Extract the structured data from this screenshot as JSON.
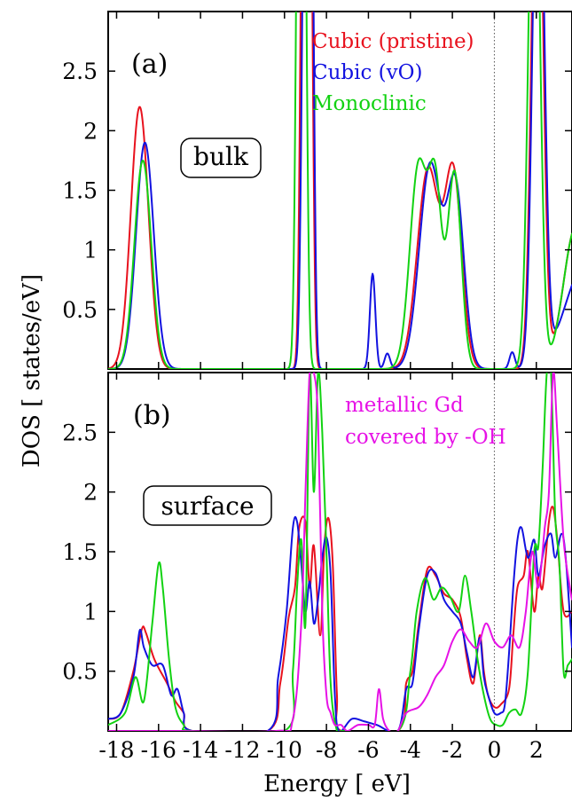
{
  "chart_data": [
    {
      "panel": "(a)",
      "box_label": "bulk",
      "type": "line",
      "xlim": [
        -18.4,
        3.7
      ],
      "ylim": [
        0,
        3.0
      ],
      "yticks": [
        "0.5",
        "1",
        "1.5",
        "2",
        "2.5"
      ],
      "ytick_values": [
        0.5,
        1,
        1.5,
        2,
        2.5
      ],
      "vertical_line": 0,
      "series": [
        {
          "name": "Cubic (pristine)",
          "color": "#e8121e",
          "peaks": [
            [
              -16.9,
              0.42,
              2.2
            ],
            [
              -9.1,
              0.13,
              5.0
            ],
            [
              -8.8,
              0.13,
              5.0
            ],
            [
              -3.15,
              0.52,
              1.68
            ],
            [
              -1.95,
              0.4,
              1.6
            ],
            [
              2.05,
              0.26,
              5.0
            ],
            [
              3.9,
              0.6,
              1.2
            ]
          ],
          "x": [
            -18.4,
            -17.4,
            -17.2,
            -16.9,
            -16.6,
            -16.3,
            -9.6,
            -9.1,
            -8.8,
            -8.3,
            -4.6,
            -4.0,
            -3.5,
            -3.2,
            -2.6,
            -2.3,
            -2.0,
            -1.7,
            -1.2,
            1.2,
            1.8,
            2.0,
            2.2,
            2.6,
            3.0,
            3.4,
            3.7
          ],
          "y": [
            0.0,
            0.0,
            0.6,
            2.2,
            0.7,
            0.0,
            0.0,
            3.0,
            3.0,
            0.0,
            0.0,
            0.4,
            1.35,
            1.72,
            1.25,
            1.3,
            1.65,
            1.2,
            0.0,
            0.0,
            1.5,
            3.0,
            3.0,
            1.0,
            0.47,
            0.62,
            0.95
          ]
        },
        {
          "name": "Cubic (vO)",
          "color": "#1212e0",
          "peaks": [
            [
              -16.65,
              0.42,
              1.9
            ],
            [
              -9.0,
              0.15,
              5.0
            ],
            [
              -8.75,
              0.13,
              5.0
            ],
            [
              -5.8,
              0.13,
              0.8
            ],
            [
              -5.1,
              0.13,
              0.13
            ],
            [
              -3.05,
              0.52,
              1.72
            ],
            [
              -1.85,
              0.4,
              1.5
            ],
            [
              0.85,
              0.13,
              0.14
            ],
            [
              2.1,
              0.26,
              5.0
            ],
            [
              4.4,
              1.0,
              0.9
            ]
          ],
          "x": [
            -18.4,
            -17.2,
            -16.9,
            -16.65,
            -16.3,
            -16.0,
            -9.6,
            -9.0,
            -8.75,
            -8.2,
            -6.1,
            -5.8,
            -5.5,
            -5.1,
            -4.6,
            -4.0,
            -3.4,
            -3.0,
            -2.4,
            -2.2,
            -1.9,
            -1.6,
            -1.1,
            0.3,
            0.85,
            1.3,
            2.0,
            2.3,
            2.6,
            3.0,
            3.4,
            3.7
          ],
          "y": [
            0.0,
            0.0,
            0.8,
            1.9,
            0.6,
            0.0,
            0.0,
            3.0,
            3.0,
            0.0,
            0.0,
            0.8,
            0.0,
            0.13,
            0.0,
            0.4,
            1.5,
            1.74,
            1.1,
            1.2,
            1.5,
            1.2,
            0.0,
            0.05,
            0.14,
            0.05,
            3.0,
            3.0,
            0.6,
            0.5,
            0.65,
            0.7
          ]
        },
        {
          "name": "Monoclinic",
          "color": "#12d212",
          "peaks": [
            [
              -16.75,
              0.4,
              1.75
            ],
            [
              -9.3,
              0.14,
              5.0
            ],
            [
              -9.1,
              0.14,
              5.0
            ],
            [
              -3.6,
              0.42,
              1.72
            ],
            [
              -2.8,
              0.3,
              1.4
            ],
            [
              -1.9,
              0.32,
              1.65
            ],
            [
              1.9,
              0.26,
              5.0
            ],
            [
              3.9,
              0.6,
              1.2
            ]
          ],
          "x": [
            -18.4,
            -17.3,
            -17.0,
            -16.75,
            -16.4,
            -16.1,
            -9.8,
            -9.3,
            -9.1,
            -8.6,
            -4.6,
            -4.0,
            -3.6,
            -3.2,
            -2.8,
            -2.4,
            -2.2,
            -1.9,
            -1.5,
            -1.1,
            1.0,
            1.6,
            1.9,
            2.2,
            2.6,
            3.0,
            3.3,
            3.7
          ],
          "y": [
            0.0,
            0.0,
            0.6,
            1.75,
            0.6,
            0.0,
            0.0,
            3.0,
            3.0,
            0.0,
            0.0,
            0.6,
            1.72,
            1.3,
            1.4,
            0.9,
            1.3,
            1.65,
            0.8,
            0.0,
            0.0,
            1.6,
            3.0,
            3.0,
            1.0,
            0.45,
            0.33,
            0.7
          ]
        }
      ]
    },
    {
      "panel": "(b)",
      "box_label": "surface",
      "type": "line",
      "xlim": [
        -18.4,
        3.7
      ],
      "ylim": [
        0,
        3.0
      ],
      "yticks": [
        "0.5",
        "1",
        "1.5",
        "2",
        "2.5"
      ],
      "ytick_values": [
        0.5,
        1,
        1.5,
        2,
        2.5
      ],
      "xlabel": "Energy [ eV]",
      "xticks": [
        "-18",
        "-16",
        "-14",
        "-12",
        "-10",
        "-8",
        "-6",
        "-4",
        "-2",
        "0",
        "2"
      ],
      "xtick_values": [
        -18,
        -16,
        -14,
        -12,
        -10,
        -8,
        -6,
        -4,
        -2,
        0,
        2
      ],
      "ylabel": "DOS [ states/eV]",
      "vertical_line": 0,
      "series": [
        {
          "name": "Cubic (pristine)",
          "color": "#e8121e",
          "x": [
            -18.4,
            -17.8,
            -17.2,
            -16.8,
            -16.6,
            -16.2,
            -15.6,
            -15.2,
            -14.8,
            -14.4,
            -10.8,
            -10.2,
            -9.8,
            -9.5,
            -9.3,
            -9.0,
            -8.8,
            -8.6,
            -8.3,
            -8.1,
            -7.9,
            -7.7,
            -7.5,
            -7.3,
            -4.6,
            -4.2,
            -3.9,
            -3.6,
            -3.2,
            -2.8,
            -2.4,
            -2.0,
            -1.6,
            -1.3,
            -1.0,
            -0.7,
            -0.5,
            -0.3,
            0.0,
            0.3,
            0.7,
            0.9,
            1.1,
            1.4,
            1.6,
            1.9,
            2.1,
            2.3,
            2.6,
            2.8,
            3.0,
            3.3,
            3.7
          ],
          "y": [
            0.1,
            0.15,
            0.5,
            0.85,
            0.82,
            0.6,
            0.4,
            0.25,
            0.15,
            0.0,
            0.0,
            0.4,
            0.95,
            1.2,
            1.7,
            1.75,
            1.2,
            1.55,
            0.8,
            1.55,
            1.78,
            1.4,
            0.3,
            0.0,
            0.0,
            0.4,
            0.5,
            0.9,
            1.35,
            1.3,
            1.15,
            1.1,
            0.95,
            0.6,
            0.4,
            0.8,
            0.5,
            0.3,
            0.2,
            0.22,
            0.35,
            0.8,
            1.2,
            1.3,
            1.5,
            1.0,
            1.3,
            1.2,
            1.75,
            1.87,
            1.6,
            1.0,
            1.0
          ]
        },
        {
          "name": "Cubic (vO)",
          "color": "#1212e0",
          "x": [
            -18.4,
            -17.8,
            -17.2,
            -16.9,
            -16.7,
            -16.3,
            -15.8,
            -15.4,
            -15.1,
            -14.8,
            -14.4,
            -10.8,
            -10.3,
            -9.9,
            -9.6,
            -9.4,
            -9.2,
            -9.0,
            -8.8,
            -8.6,
            -8.4,
            -8.2,
            -8.0,
            -7.8,
            -7.6,
            -7.4,
            -6.8,
            -6.2,
            -5.6,
            -4.6,
            -4.2,
            -3.9,
            -3.6,
            -3.2,
            -2.8,
            -2.4,
            -2.0,
            -1.6,
            -1.3,
            -1.0,
            -0.7,
            -0.5,
            -0.3,
            0.0,
            0.3,
            0.5,
            0.7,
            0.9,
            1.1,
            1.3,
            1.6,
            1.9,
            2.1,
            2.4,
            2.7,
            2.9,
            3.2,
            3.4,
            3.7
          ],
          "y": [
            0.1,
            0.15,
            0.45,
            0.84,
            0.7,
            0.55,
            0.55,
            0.3,
            0.35,
            0.15,
            0.0,
            0.0,
            0.45,
            1.0,
            1.7,
            1.75,
            1.4,
            1.0,
            1.25,
            0.9,
            1.1,
            1.45,
            1.62,
            1.3,
            0.3,
            0.0,
            0.1,
            0.08,
            0.05,
            0.0,
            0.35,
            0.4,
            0.85,
            1.3,
            1.32,
            1.1,
            1.0,
            0.9,
            0.65,
            0.45,
            0.78,
            0.45,
            0.3,
            0.15,
            0.15,
            0.22,
            0.65,
            1.2,
            1.6,
            1.7,
            1.45,
            1.6,
            1.3,
            1.55,
            1.65,
            1.45,
            1.65,
            1.45,
            0.7
          ]
        },
        {
          "name": "Monoclinic",
          "color": "#12d212",
          "x": [
            -18.4,
            -17.6,
            -17.1,
            -16.7,
            -16.3,
            -16.0,
            -15.8,
            -15.5,
            -15.2,
            -14.8,
            -14.4,
            -10.0,
            -9.6,
            -9.4,
            -9.2,
            -9.0,
            -8.8,
            -8.6,
            -8.4,
            -8.2,
            -8.0,
            -7.8,
            -7.5,
            -7.2,
            -4.6,
            -4.0,
            -3.7,
            -3.3,
            -2.9,
            -2.5,
            -2.1,
            -1.7,
            -1.4,
            -1.1,
            -0.8,
            -0.5,
            -0.2,
            0.1,
            0.4,
            0.7,
            1.0,
            1.3,
            1.6,
            1.9,
            2.1,
            2.3,
            2.5,
            2.7,
            2.9,
            3.1,
            3.3,
            3.5,
            3.7
          ],
          "y": [
            0.05,
            0.15,
            0.45,
            0.25,
            0.9,
            1.4,
            1.2,
            0.6,
            0.2,
            0.05,
            0.0,
            0.0,
            0.5,
            1.2,
            1.6,
            0.9,
            3.0,
            2.0,
            3.0,
            2.5,
            1.5,
            0.4,
            0.0,
            0.0,
            0.0,
            0.5,
            1.0,
            1.28,
            1.1,
            1.2,
            1.12,
            1.0,
            1.3,
            1.0,
            0.6,
            0.3,
            0.1,
            0.05,
            0.05,
            0.15,
            0.18,
            0.15,
            0.5,
            1.5,
            1.55,
            2.2,
            3.0,
            3.0,
            1.8,
            1.4,
            0.5,
            0.55,
            0.6
          ]
        },
        {
          "name": "metallic Gd covered by -OH",
          "color": "#e612e6",
          "x": [
            -18.4,
            -15.0,
            -10.4,
            -9.6,
            -9.2,
            -9.0,
            -8.8,
            -8.6,
            -8.4,
            -8.2,
            -8.0,
            -7.8,
            -7.6,
            -7.3,
            -7.0,
            -6.5,
            -6.0,
            -5.7,
            -5.5,
            -5.3,
            -5.0,
            -4.6,
            -4.2,
            -3.6,
            -3.2,
            -2.8,
            -2.4,
            -2.0,
            -1.6,
            -1.2,
            -0.8,
            -0.4,
            0.0,
            0.4,
            0.8,
            1.2,
            1.5,
            1.8,
            2.1,
            2.4,
            2.6,
            2.8,
            3.0,
            3.3,
            3.6,
            3.7
          ],
          "y": [
            0.0,
            0.0,
            0.0,
            0.1,
            0.9,
            2.0,
            3.0,
            3.0,
            2.6,
            1.0,
            0.3,
            0.15,
            0.05,
            0.05,
            0.0,
            0.05,
            0.05,
            0.05,
            0.35,
            0.1,
            0.0,
            0.0,
            0.15,
            0.2,
            0.3,
            0.45,
            0.55,
            0.75,
            0.85,
            0.75,
            0.7,
            0.9,
            0.75,
            0.7,
            0.8,
            0.7,
            1.0,
            1.5,
            1.2,
            1.7,
            2.0,
            3.0,
            2.5,
            1.6,
            1.2,
            1.1
          ]
        }
      ],
      "legend": [
        {
          "lines": [
            "metallic Gd",
            "covered by -OH"
          ],
          "color": "#e612e6"
        }
      ]
    }
  ],
  "legend_a": [
    {
      "label": "Cubic (pristine)",
      "color": "#e8121e"
    },
    {
      "label": "Cubic (vO)",
      "color": "#1212e0"
    },
    {
      "label": "Monoclinic",
      "color": "#12d212"
    }
  ]
}
